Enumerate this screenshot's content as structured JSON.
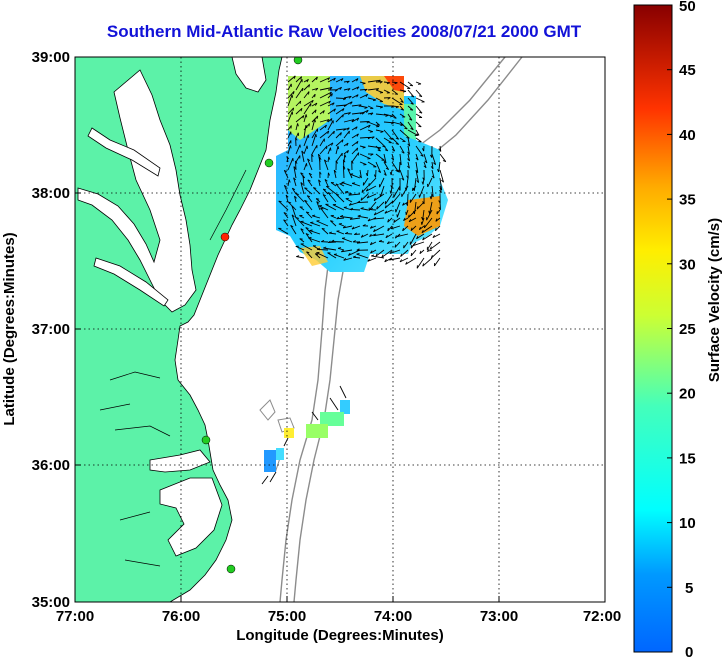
{
  "title": "Southern Mid-Atlantic Raw Velocities 2008/07/21 2000 GMT",
  "map": {
    "xlabel": "Longitude (Degrees:Minutes)",
    "ylabel": "Latitude (Degrees:Minutes)",
    "x_ticks": [
      "77:00",
      "76:00",
      "75:00",
      "74:00",
      "73:00",
      "72:00"
    ],
    "y_ticks": [
      "39:00",
      "38:00",
      "37:00",
      "36:00",
      "35:00"
    ],
    "lon_range": [
      -77,
      -72
    ],
    "lat_range": [
      35,
      39
    ],
    "grid": true,
    "land_color": "#5cf2a8",
    "bathymetry_color": "#8c8c8c",
    "station_color": "#22cc22",
    "station_highlight_color": "#ff2200"
  },
  "colorbar": {
    "label": "Surface Velocity (cm/s)",
    "ticks": [
      "50",
      "45",
      "40",
      "35",
      "30",
      "25",
      "20",
      "15",
      "10",
      "5",
      "0"
    ],
    "range": [
      0,
      50
    ],
    "colormap": "jet"
  }
}
